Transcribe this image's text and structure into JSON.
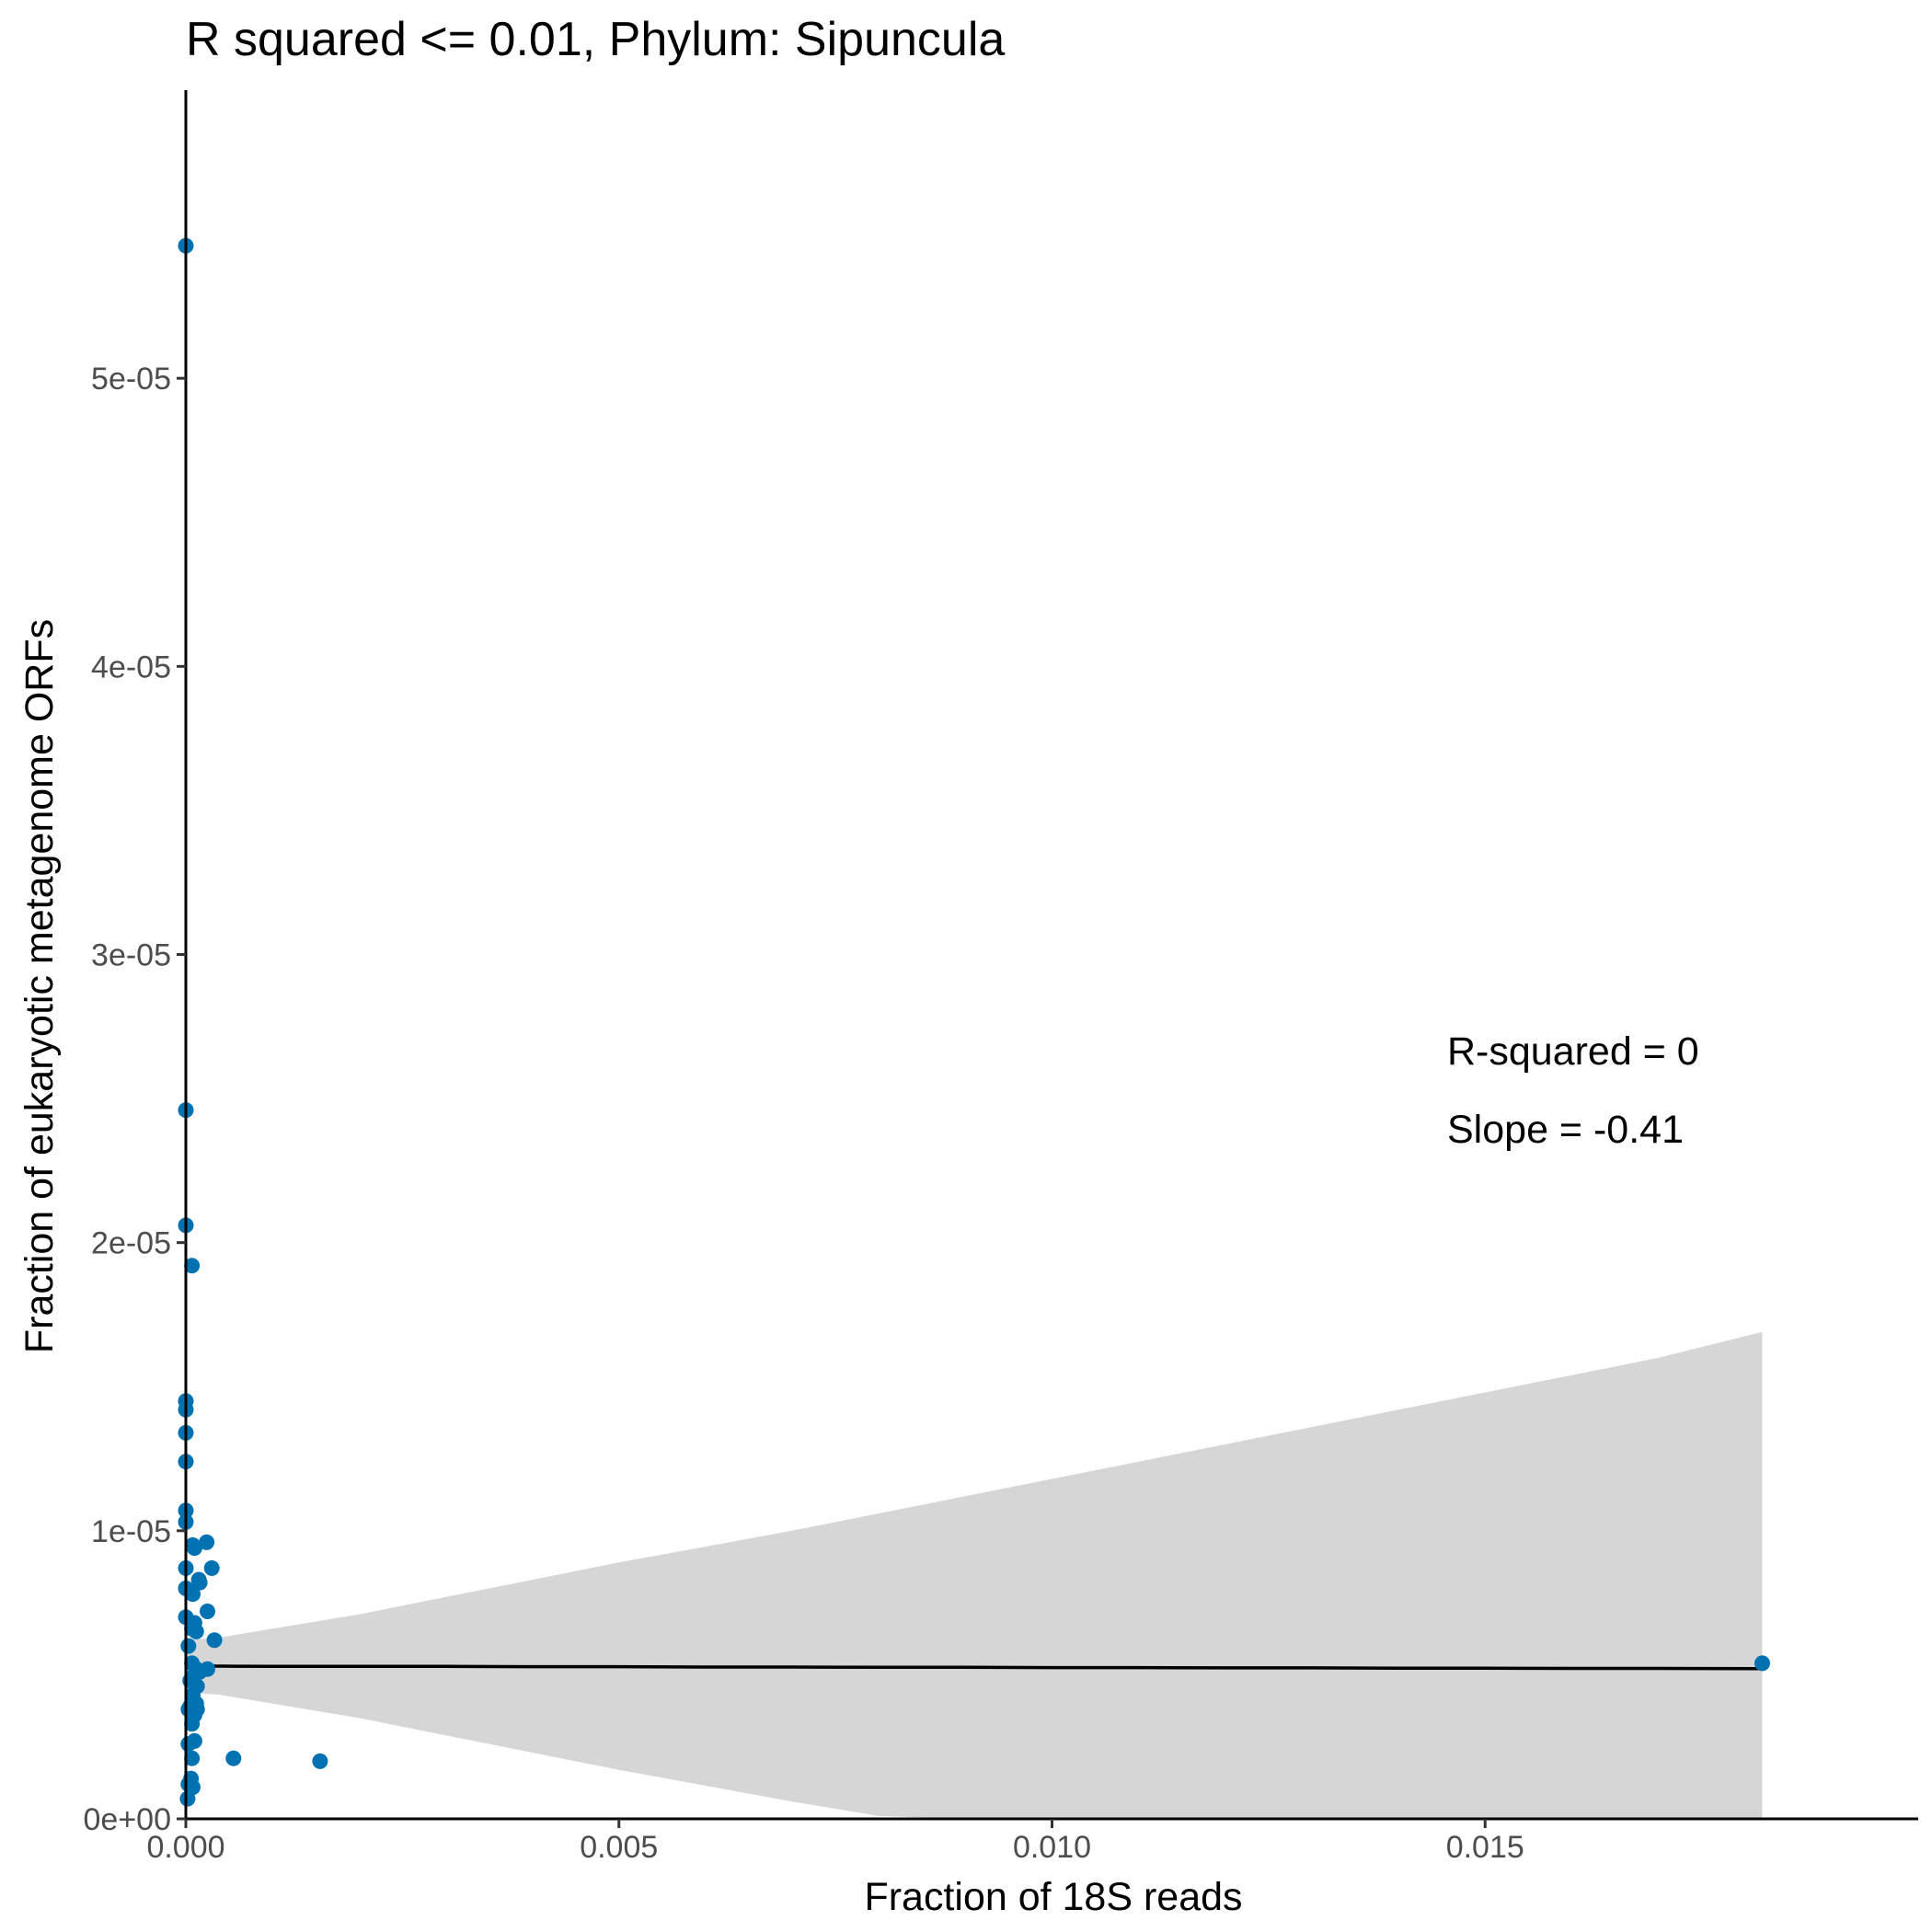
{
  "chart_data": {
    "type": "scatter",
    "title": "R squared <= 0.01, Phylum:  Sipuncula",
    "xlabel": "Fraction of 18S reads",
    "ylabel": "Fraction of eukaryotic metagenome ORFs",
    "xlim": [
      0,
      0.02
    ],
    "ylim": [
      0,
      6e-05
    ],
    "x_ticks": [
      0,
      0.005,
      0.01,
      0.015
    ],
    "x_tick_labels": [
      "0.000",
      "0.005",
      "0.010",
      "0.015"
    ],
    "y_ticks": [
      0,
      1e-05,
      2e-05,
      3e-05,
      4e-05,
      5e-05
    ],
    "y_tick_labels": [
      "0e+00",
      "1e-05",
      "2e-05",
      "3e-05",
      "4e-05",
      "5e-05"
    ],
    "grid": false,
    "point_color": "#0072b2",
    "ribbon_color": "#d6d6d6",
    "line_color": "#000000",
    "annotations": [
      "R-squared =  0",
      "Slope =  -0.41"
    ],
    "regression": {
      "x": [
        0,
        0.0004,
        0.001,
        0.002,
        0.003,
        0.004,
        0.005,
        0.006,
        0.007,
        0.008,
        0.009,
        0.01,
        0.011,
        0.012,
        0.013,
        0.014,
        0.015,
        0.016,
        0.017,
        0.0182
      ],
      "y": [
        5.3e-06,
        5.3e-06,
        5.29e-06,
        5.29e-06,
        5.29e-06,
        5.28e-06,
        5.28e-06,
        5.27e-06,
        5.27e-06,
        5.26e-06,
        5.26e-06,
        5.25e-06,
        5.25e-06,
        5.24e-06,
        5.24e-06,
        5.23e-06,
        5.23e-06,
        5.22e-06,
        5.22e-06,
        5.21e-06
      ],
      "lower": [
        4.4e-06,
        4.3e-06,
        4e-06,
        3.5e-06,
        2.9e-06,
        2.3e-06,
        1.7e-06,
        1.15e-06,
        6e-07,
        1e-07,
        -5e-07,
        -1.1e-06,
        -1.7e-06,
        -2.3e-06,
        -2.9e-06,
        -3.5e-06,
        -4.1e-06,
        -4.7e-06,
        -5.3e-06,
        -6.2e-06
      ],
      "upper": [
        6.2e-06,
        6.3e-06,
        6.6e-06,
        7.1e-06,
        7.7e-06,
        8.3e-06,
        8.9e-06,
        9.45e-06,
        1e-05,
        1.06e-05,
        1.12e-05,
        1.18e-05,
        1.24e-05,
        1.3e-05,
        1.36e-05,
        1.42e-05,
        1.48e-05,
        1.54e-05,
        1.6e-05,
        1.69e-05
      ]
    },
    "series": [
      {
        "x": [
          0,
          0,
          0,
          0,
          0,
          0,
          0,
          0,
          7e-05,
          0,
          0,
          0,
          0,
          0.00024,
          0.0001,
          8e-05,
          0.00016,
          0.0003,
          0.00015,
          0.00025,
          8e-05,
          0.0001,
          7e-05,
          0.00012,
          0.00033,
          3e-05,
          7e-05,
          0.00012,
          0.00025,
          0.00016,
          0.0001,
          5e-05,
          0.00013,
          8e-05,
          0.00012,
          3e-05,
          0.0001,
          5e-05,
          0.00013,
          7e-05,
          0.0001,
          3e-05,
          7e-05,
          6e-05,
          3e-05,
          8e-05,
          2e-05,
          0.00055,
          0.00155,
          0.0182
        ],
        "y": [
          5.46e-05,
          2.46e-05,
          2.06e-05,
          1.45e-05,
          1.42e-05,
          1.34e-05,
          1.24e-05,
          1.07e-05,
          1.92e-05,
          1.03e-05,
          8.7e-06,
          8e-06,
          7e-06,
          9.6e-06,
          9.4e-06,
          9.5e-06,
          8.2e-06,
          8.7e-06,
          8.3e-06,
          7.2e-06,
          7.8e-06,
          6.8e-06,
          6.6e-06,
          6.5e-06,
          6.2e-06,
          6e-06,
          5.4e-06,
          5.2e-06,
          5.2e-06,
          5.1e-06,
          5e-06,
          4.8e-06,
          4.6e-06,
          4.3e-06,
          4e-06,
          3.8e-06,
          3.6e-06,
          3.9e-06,
          3.8e-06,
          3.3e-06,
          2.7e-06,
          2.6e-06,
          2.1e-06,
          1.4e-06,
          1.2e-06,
          1.1e-06,
          7e-07,
          2.1e-06,
          2e-06,
          5.4e-06
        ]
      }
    ]
  }
}
